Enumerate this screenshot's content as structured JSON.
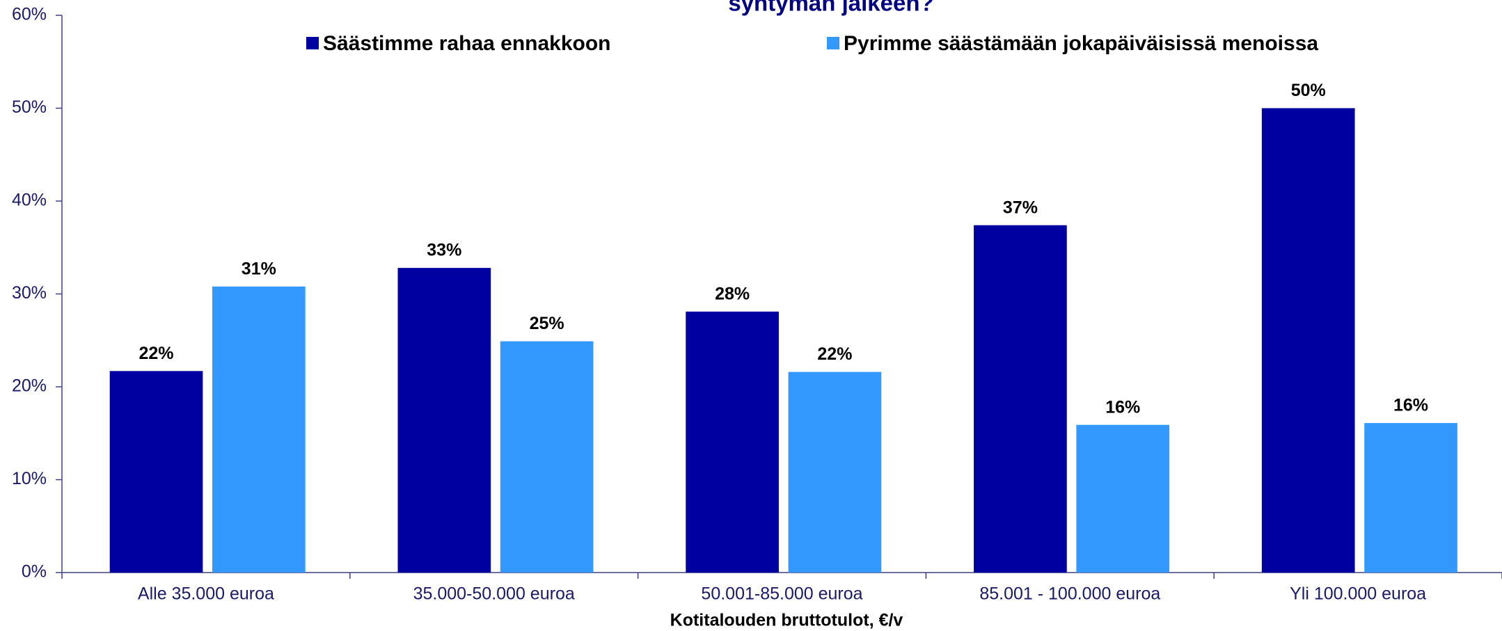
{
  "chart_data": {
    "type": "bar",
    "title": "syntymän jälkeen?",
    "x_label": "Kotitalouden bruttotulot, €/v",
    "categories": [
      "Alle 35.000 euroa",
      "35.000-50.000 euroa",
      "50.001-85.000 euroa",
      "85.001 - 100.000 euroa",
      "Yli 100.000 euroa"
    ],
    "series": [
      {
        "name": "Säästimme rahaa ennakkoon",
        "color": "#0000a0",
        "values": [
          21.7,
          32.8,
          28.1,
          37.4,
          50.0
        ],
        "value_labels": [
          "22%",
          "33%",
          "28%",
          "37%",
          "50%"
        ]
      },
      {
        "name": "Pyrimme säästämään jokapäiväisissä menoissa",
        "color": "#3399ff",
        "values": [
          30.8,
          24.9,
          21.6,
          15.9,
          16.1
        ],
        "value_labels": [
          "31%",
          "25%",
          "22%",
          "16%",
          "16%"
        ]
      }
    ],
    "ylim": [
      0,
      60
    ],
    "yticks": [
      {
        "value": 0,
        "label": "0%"
      },
      {
        "value": 10,
        "label": "10%"
      },
      {
        "value": 20,
        "label": "20%"
      },
      {
        "value": 30,
        "label": "30%"
      },
      {
        "value": 40,
        "label": "40%"
      },
      {
        "value": 50,
        "label": "50%"
      },
      {
        "value": 60,
        "label": "60%"
      }
    ],
    "legend": "top"
  }
}
